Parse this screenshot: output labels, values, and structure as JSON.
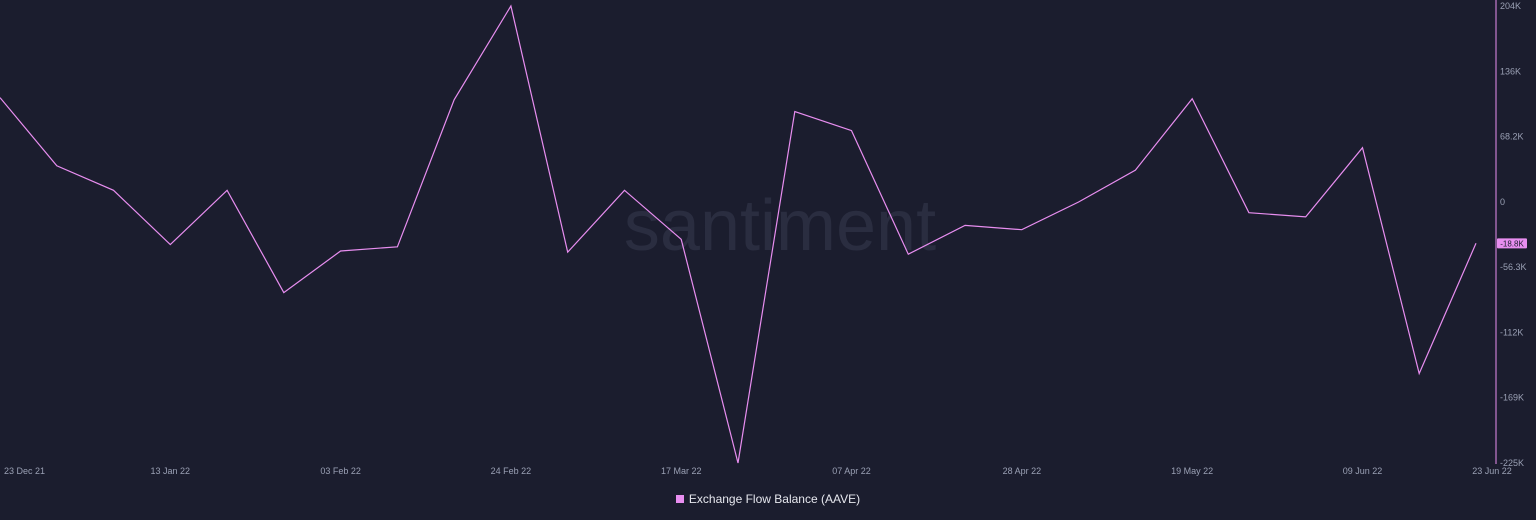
{
  "watermark": "santiment",
  "colors": {
    "background": "#1b1d2e",
    "line": "#e88ef0",
    "axis": "#e88ef0",
    "tick_text": "#9aa0b4",
    "legend_text": "#e6e7ee"
  },
  "legend": {
    "label": "Exchange Flow Balance (AAVE)"
  },
  "chart_data": {
    "type": "line",
    "title": "",
    "xlabel": "",
    "ylabel": "",
    "grid": false,
    "legend_position": "bottom-center",
    "x_tick_labels": [
      "23 Dec 21",
      "13 Jan 22",
      "03 Feb 22",
      "24 Feb 22",
      "17 Mar 22",
      "07 Apr 22",
      "28 Apr 22",
      "19 May 22",
      "09 Jun 22",
      "23 Jun 22"
    ],
    "y_tick_labels": [
      "204K",
      "136K",
      "68.2K",
      "0",
      "-56.3K",
      "-112K",
      "-169K",
      "-225K"
    ],
    "ylim": [
      -225000,
      204000
    ],
    "current_value_label": "-18.8K",
    "series": [
      {
        "name": "Exchange Flow Balance (AAVE)",
        "x": [
          "2021-12-23",
          "2021-12-30",
          "2022-01-06",
          "2022-01-13",
          "2022-01-20",
          "2022-01-27",
          "2022-02-03",
          "2022-02-10",
          "2022-02-17",
          "2022-02-24",
          "2022-03-03",
          "2022-03-10",
          "2022-03-17",
          "2022-03-24",
          "2022-03-31",
          "2022-04-07",
          "2022-04-14",
          "2022-04-21",
          "2022-04-28",
          "2022-05-05",
          "2022-05-12",
          "2022-05-19",
          "2022-05-26",
          "2022-06-02",
          "2022-06-09",
          "2022-06-16",
          "2022-06-23"
        ],
        "values": [
          118000,
          54000,
          31000,
          -20000,
          31000,
          -65000,
          -26000,
          -22000,
          116000,
          210000,
          -27000,
          31000,
          -15000,
          -225000,
          105000,
          87000,
          -29000,
          -2000,
          -6000,
          20000,
          50000,
          117000,
          10000,
          6000,
          71000,
          -141000,
          -18800
        ]
      }
    ]
  }
}
